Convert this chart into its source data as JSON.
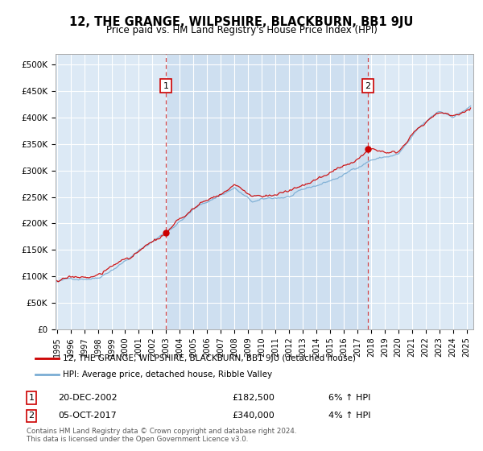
{
  "title": "12, THE GRANGE, WILPSHIRE, BLACKBURN, BB1 9JU",
  "subtitle": "Price paid vs. HM Land Registry's House Price Index (HPI)",
  "legend_line1": "12, THE GRANGE, WILPSHIRE, BLACKBURN, BB1 9JU (detached house)",
  "legend_line2": "HPI: Average price, detached house, Ribble Valley",
  "transaction1_date": "20-DEC-2002",
  "transaction1_price": "£182,500",
  "transaction1_hpi": "6% ↑ HPI",
  "transaction1_year": 2002.97,
  "transaction1_value": 182500,
  "transaction2_date": "05-OCT-2017",
  "transaction2_price": "£340,000",
  "transaction2_hpi": "4% ↑ HPI",
  "transaction2_year": 2017.77,
  "transaction2_value": 340000,
  "yticks": [
    0,
    50000,
    100000,
    150000,
    200000,
    250000,
    300000,
    350000,
    400000,
    450000,
    500000
  ],
  "ytick_labels": [
    "£0",
    "£50K",
    "£100K",
    "£150K",
    "£200K",
    "£250K",
    "£300K",
    "£350K",
    "£400K",
    "£450K",
    "£500K"
  ],
  "xlim_start": 1994.9,
  "xlim_end": 2025.5,
  "ylim_bottom": 0,
  "ylim_top": 520000,
  "background_color": "#dce9f5",
  "shade_color": "#c5d9ee",
  "red_line_color": "#cc0000",
  "blue_line_color": "#7aadd4",
  "vline_color": "#cc0000",
  "copyright_text": "Contains HM Land Registry data © Crown copyright and database right 2024.\nThis data is licensed under the Open Government Licence v3.0.",
  "xticks": [
    1995,
    1996,
    1997,
    1998,
    1999,
    2000,
    2001,
    2002,
    2003,
    2004,
    2005,
    2006,
    2007,
    2008,
    2009,
    2010,
    2011,
    2012,
    2013,
    2014,
    2015,
    2016,
    2017,
    2018,
    2019,
    2020,
    2021,
    2022,
    2023,
    2024,
    2025
  ]
}
